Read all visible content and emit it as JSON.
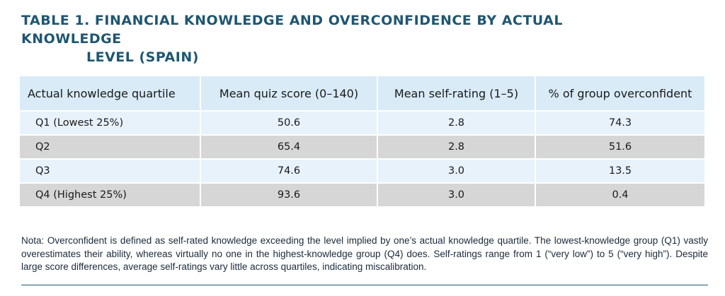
{
  "title": {
    "line1": "TABLE 1. FINANCIAL KNOWLEDGE AND OVERCONFIDENCE BY ACTUAL KNOWLEDGE",
    "line2": "LEVEL (SPAIN)"
  },
  "table": {
    "headers": [
      "Actual knowledge quartile",
      "Mean quiz score (0–140)",
      "Mean self-rating (1–5)",
      "% of group overconfident"
    ],
    "rows": [
      [
        "Q1 (Lowest 25%)",
        "50.6",
        "2.8",
        "74.3"
      ],
      [
        "Q2",
        "65.4",
        "2.8",
        "51.6"
      ],
      [
        "Q3",
        "74.6",
        "3.0",
        "13.5"
      ],
      [
        "Q4 (Highest 25%)",
        "93.6",
        "3.0",
        "0.4"
      ]
    ]
  },
  "note": "Nota: Overconfident is defined as self-rated knowledge exceeding the level implied by one’s actual knowledge quartile. The lowest-knowledge group (Q1) vastly overestimates their ability, whereas virtually no one in the highest-knowledge group (Q4) does. Self-ratings range from 1 (“very low”) to 5 (“very high”). Despite large score differences, average self-ratings vary little across quartiles, indicating miscalibration.",
  "colors": {
    "title": "#1f5672",
    "header_bg": "#d9ebf7",
    "row_light": "#e8f2fa",
    "row_gray": "#d6d6d6",
    "rule": "#1f5672"
  }
}
